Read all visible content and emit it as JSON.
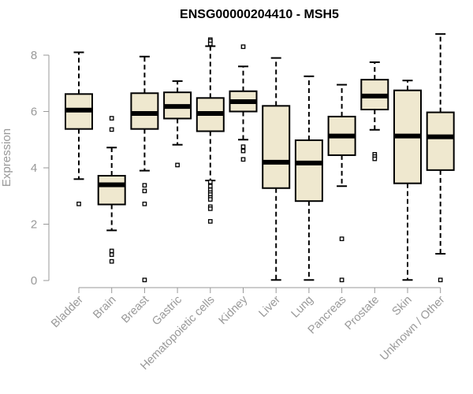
{
  "chart_data": {
    "type": "boxplot",
    "title": "ENSG00000204410 - MSH5",
    "xlabel": "",
    "ylabel": "Expression",
    "ylim": [
      0,
      8.8
    ],
    "yticks": [
      0,
      2,
      4,
      6,
      8
    ],
    "grid": false,
    "legend": "none",
    "box_fill": "#EFE8CF",
    "box_stroke": "#000000",
    "categories": [
      "Bladder",
      "Brain",
      "Breast",
      "Gastric",
      "Hematopoietic cells",
      "Kidney",
      "Liver",
      "Lung",
      "Pancreas",
      "Prostate",
      "Skin",
      "Unknown / Other"
    ],
    "boxes": [
      {
        "category": "Bladder",
        "whisker_low": 3.6,
        "q1": 5.38,
        "median": 6.05,
        "q3": 6.62,
        "whisker_high": 8.1,
        "outliers": [
          2.72
        ]
      },
      {
        "category": "Brain",
        "whisker_low": 1.78,
        "q1": 2.7,
        "median": 3.4,
        "q3": 3.72,
        "whisker_high": 4.72,
        "outliers": [
          5.76,
          5.36,
          1.05,
          0.92,
          0.68
        ]
      },
      {
        "category": "Breast",
        "whisker_low": 3.9,
        "q1": 5.38,
        "median": 5.93,
        "q3": 6.65,
        "whisker_high": 7.95,
        "outliers": [
          3.38,
          3.18,
          2.72,
          0.02
        ]
      },
      {
        "category": "Gastric",
        "whisker_low": 4.82,
        "q1": 5.75,
        "median": 6.18,
        "q3": 6.68,
        "whisker_high": 7.08,
        "outliers": [
          4.1
        ]
      },
      {
        "category": "Hematopoietic cells",
        "whisker_low": 3.55,
        "q1": 5.3,
        "median": 5.93,
        "q3": 6.48,
        "whisker_high": 8.32,
        "outliers": [
          8.55,
          8.5,
          8.4,
          3.5,
          3.35,
          3.22,
          3.12,
          3.05,
          2.95,
          2.88,
          2.62,
          2.55,
          2.1
        ]
      },
      {
        "category": "Kidney",
        "whisker_low": 5.0,
        "q1": 6.0,
        "median": 6.35,
        "q3": 6.72,
        "whisker_high": 7.6,
        "outliers": [
          8.3,
          4.75,
          4.6,
          4.3
        ]
      },
      {
        "category": "Liver",
        "whisker_low": 0.02,
        "q1": 3.28,
        "median": 4.2,
        "q3": 6.2,
        "whisker_high": 7.9,
        "outliers": []
      },
      {
        "category": "Lung",
        "whisker_low": 0.02,
        "q1": 2.82,
        "median": 4.17,
        "q3": 4.98,
        "whisker_high": 7.25,
        "outliers": []
      },
      {
        "category": "Pancreas",
        "whisker_low": 3.35,
        "q1": 4.45,
        "median": 5.13,
        "q3": 5.82,
        "whisker_high": 6.95,
        "outliers": [
          1.48,
          0.02
        ]
      },
      {
        "category": "Prostate",
        "whisker_low": 5.35,
        "q1": 6.07,
        "median": 6.55,
        "q3": 7.13,
        "whisker_high": 7.75,
        "outliers": [
          4.48,
          4.4,
          4.32
        ]
      },
      {
        "category": "Skin",
        "whisker_low": 0.02,
        "q1": 3.45,
        "median": 5.13,
        "q3": 6.75,
        "whisker_high": 7.1,
        "outliers": []
      },
      {
        "category": "Unknown / Other",
        "whisker_low": 0.95,
        "q1": 3.92,
        "median": 5.1,
        "q3": 5.97,
        "whisker_high": 8.75,
        "outliers": [
          0.02
        ]
      }
    ]
  }
}
